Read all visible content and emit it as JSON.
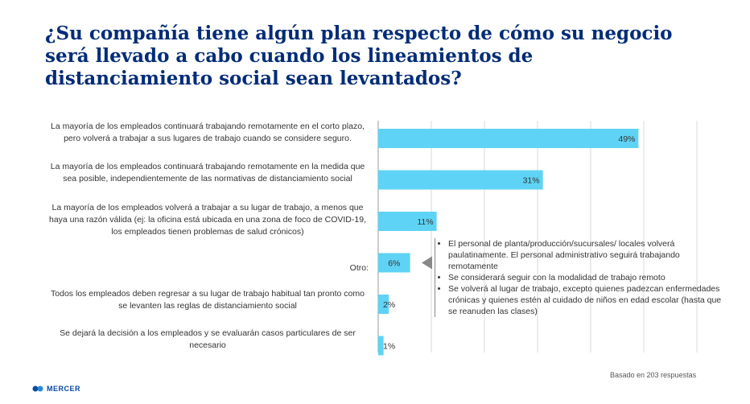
{
  "title": "¿Su compañía tiene algún plan respecto de cómo su negocio será llevado a cabo cuando los lineamientos de distanciamiento social sean levantados?",
  "footnote": "Basado en 203 respuestas",
  "brand": "MERCER",
  "bar_color": "#5fd3f5",
  "chart_data": {
    "type": "bar",
    "orientation": "horizontal",
    "title": "¿Su compañía tiene algún plan respecto de cómo su negocio será llevado a cabo cuando los lineamientos de distanciamiento social sean levantados?",
    "categories": [
      "La mayoría de los empleados continuará trabajando remotamente en el corto plazo, pero volverá a trabajar a sus lugares de trabajo cuando se considere seguro.",
      "La mayoría de los empleados continuará trabajando remotamente en la medida que sea posible, independientemente de las normativas de distanciamiento social",
      "La mayoría de los empleados volverá a trabajar a su lugar de trabajo, a menos que haya una razón válida (ej: la oficina está ubicada en una zona de foco de COVID-19, los empleados tienen problemas de salud crónicos)",
      "Otro:",
      "Todos los empleados deben regresar a su lugar de trabajo habitual  tan pronto como se levanten las reglas de distanciamiento social",
      "Se dejará la decisión a los empleados y se evaluarán casos particulares de ser necesario"
    ],
    "values": [
      49,
      31,
      11,
      6,
      2,
      1
    ],
    "labels": [
      "49%",
      "31%",
      "11%",
      "6%",
      "2%",
      "1%"
    ],
    "xlim": [
      0,
      60
    ],
    "grid": true,
    "annotation": [
      "El personal de planta/producción/sucursales/ locales volverá paulatinamente. El personal administrativo seguirá trabajando remotamente",
      "Se considerará seguir con la modalidad de trabajo remoto",
      "Se volverá al lugar de trabajo, excepto quienes padezcan enfermedades crónicas y quienes estén al cuidado de niños en edad escolar (hasta que se reanuden las clases)"
    ]
  }
}
